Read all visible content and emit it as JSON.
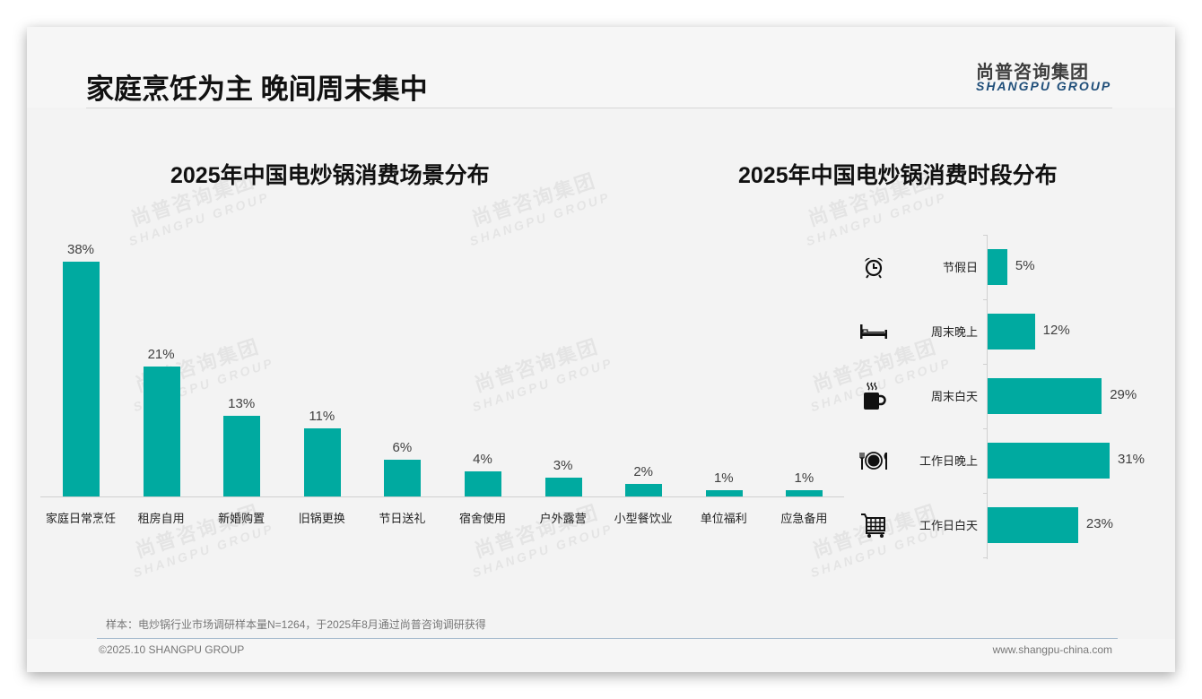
{
  "header": {
    "title": "家庭烹饪为主 晚间周末集中",
    "logo_cn": "尚普咨询集团",
    "logo_en": "SHANGPU GROUP"
  },
  "watermark": {
    "cn": "尚普咨询集团",
    "en": "SHANGPU GROUP"
  },
  "colors": {
    "bar": "#00aaa0",
    "logo_en": "#1f4e79"
  },
  "left_chart": {
    "title": "2025年中国电炒锅消费场景分布",
    "bars": [
      {
        "label": "家庭日常烹饪",
        "value": 38,
        "display": "38%"
      },
      {
        "label": "租房自用",
        "value": 21,
        "display": "21%"
      },
      {
        "label": "新婚购置",
        "value": 13,
        "display": "13%"
      },
      {
        "label": "旧锅更换",
        "value": 11,
        "display": "11%"
      },
      {
        "label": "节日送礼",
        "value": 6,
        "display": "6%"
      },
      {
        "label": "宿舍使用",
        "value": 4,
        "display": "4%"
      },
      {
        "label": "户外露营",
        "value": 3,
        "display": "3%"
      },
      {
        "label": "小型餐饮业",
        "value": 2,
        "display": "2%"
      },
      {
        "label": "单位福利",
        "value": 1,
        "display": "1%"
      },
      {
        "label": "应急备用",
        "value": 1,
        "display": "1%"
      }
    ]
  },
  "right_chart": {
    "title": "2025年中国电炒锅消费时段分布",
    "bars": [
      {
        "label": "节假日",
        "value": 5,
        "display": "5%",
        "icon": "alarm-clock-icon"
      },
      {
        "label": "周末晚上",
        "value": 12,
        "display": "12%",
        "icon": "bed-icon"
      },
      {
        "label": "周末白天",
        "value": 29,
        "display": "29%",
        "icon": "coffee-cup-icon"
      },
      {
        "label": "工作日晚上",
        "value": 31,
        "display": "31%",
        "icon": "dinner-plate-icon"
      },
      {
        "label": "工作日白天",
        "value": 23,
        "display": "23%",
        "icon": "shopping-cart-icon"
      }
    ]
  },
  "footer": {
    "note": "样本：电炒锅行业市场调研样本量N=1264，于2025年8月通过尚普咨询调研获得",
    "copyright": "©2025.10 SHANGPU GROUP",
    "website": "www.shangpu-china.com"
  },
  "chart_data": [
    {
      "type": "bar",
      "title": "2025年中国电炒锅消费场景分布",
      "categories": [
        "家庭日常烹饪",
        "租房自用",
        "新婚购置",
        "旧锅更换",
        "节日送礼",
        "宿舍使用",
        "户外露营",
        "小型餐饮业",
        "单位福利",
        "应急备用"
      ],
      "values": [
        38,
        21,
        13,
        11,
        6,
        4,
        3,
        2,
        1,
        1
      ],
      "unit": "%",
      "xlabel": "",
      "ylabel": "",
      "grid": false,
      "legend": "none",
      "orientation": "vertical"
    },
    {
      "type": "bar",
      "title": "2025年中国电炒锅消费时段分布",
      "categories": [
        "节假日",
        "周末晚上",
        "周末白天",
        "工作日晚上",
        "工作日白天"
      ],
      "values": [
        5,
        12,
        29,
        31,
        23
      ],
      "unit": "%",
      "xlabel": "",
      "ylabel": "",
      "grid": false,
      "legend": "none",
      "orientation": "horizontal"
    }
  ]
}
